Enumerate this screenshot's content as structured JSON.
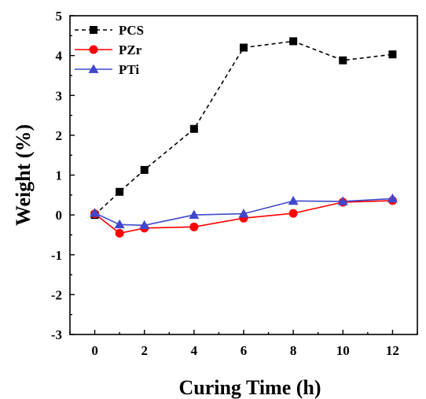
{
  "chart_data": {
    "type": "line",
    "xlabel": "Curing Time (h)",
    "ylabel": "Weight (%)",
    "xlim": [
      -1,
      13
    ],
    "ylim": [
      -3,
      5
    ],
    "xticks": [
      0,
      2,
      4,
      6,
      8,
      10,
      12
    ],
    "yticks": [
      -3,
      -2,
      -1,
      0,
      1,
      2,
      3,
      4,
      5
    ],
    "legend_position": "top-left",
    "grid": false,
    "series": [
      {
        "name": "PCS",
        "color": "#000000",
        "marker": "square",
        "line_style": "dashed",
        "x": [
          0,
          1,
          2,
          4,
          6,
          8,
          10,
          12
        ],
        "y": [
          0.0,
          0.58,
          1.13,
          2.16,
          4.2,
          4.36,
          3.88,
          4.03
        ]
      },
      {
        "name": "PZr",
        "color": "#ff0000",
        "marker": "circle",
        "line_style": "solid",
        "x": [
          0,
          1,
          2,
          4,
          6,
          8,
          10,
          12
        ],
        "y": [
          0.03,
          -0.46,
          -0.33,
          -0.3,
          -0.08,
          0.04,
          0.32,
          0.36
        ]
      },
      {
        "name": "PTi",
        "color": "#3f48cc",
        "marker": "triangle",
        "line_style": "solid",
        "x": [
          0,
          1,
          2,
          4,
          6,
          8,
          10,
          12
        ],
        "y": [
          0.05,
          -0.24,
          -0.26,
          0.0,
          0.03,
          0.35,
          0.34,
          0.41
        ]
      }
    ]
  }
}
